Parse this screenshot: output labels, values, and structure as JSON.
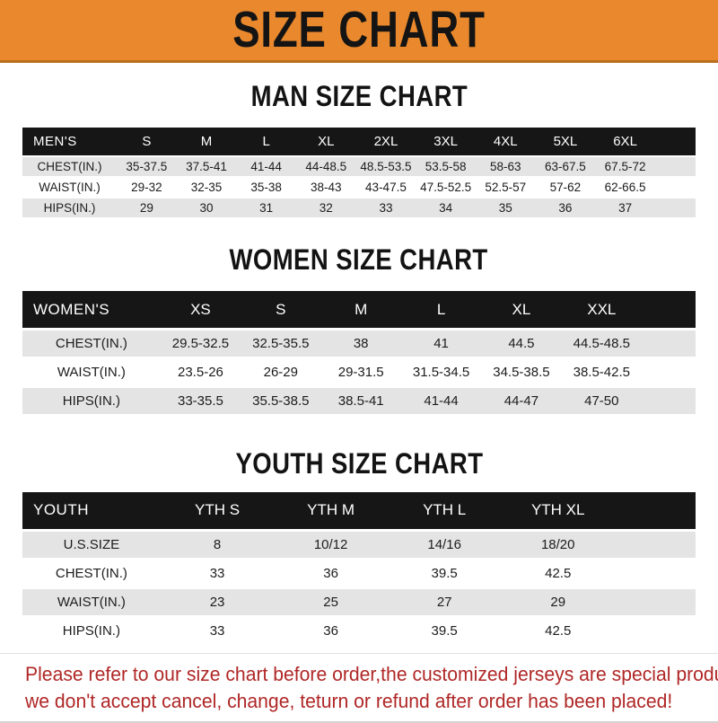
{
  "banner": {
    "title": "SIZE CHART"
  },
  "colors": {
    "banner_bg": "#e9882c",
    "banner_text": "#141414",
    "header_bar_bg": "#161616",
    "header_bar_text": "#ffffff",
    "row_alt_bg": "#e4e4e4",
    "footer_text": "#b02727"
  },
  "footer": {
    "line1": "Please refer to our size chart before order,the customized jerseys are special products,",
    "line2": "we don't accept cancel, change, teturn or refund after order has been placed!"
  },
  "chart_data": [
    {
      "type": "table",
      "title": "MAN SIZE CHART",
      "corner_label": "MEN'S",
      "columns": [
        "S",
        "M",
        "L",
        "XL",
        "2XL",
        "3XL",
        "4XL",
        "5XL",
        "6XL"
      ],
      "rows": [
        {
          "label": "CHEST(IN.)",
          "values": [
            "35-37.5",
            "37.5-41",
            "41-44",
            "44-48.5",
            "48.5-53.5",
            "53.5-58",
            "58-63",
            "63-67.5",
            "67.5-72"
          ]
        },
        {
          "label": "WAIST(IN.)",
          "values": [
            "29-32",
            "32-35",
            "35-38",
            "38-43",
            "43-47.5",
            "47.5-52.5",
            "52.5-57",
            "57-62",
            "62-66.5"
          ]
        },
        {
          "label": "HIPS(IN.)",
          "values": [
            "29",
            "30",
            "31",
            "32",
            "33",
            "34",
            "35",
            "36",
            "37"
          ]
        }
      ]
    },
    {
      "type": "table",
      "title": "WOMEN SIZE CHART",
      "corner_label": "WOMEN'S",
      "columns": [
        "XS",
        "S",
        "M",
        "L",
        "XL",
        "XXL"
      ],
      "rows": [
        {
          "label": "CHEST(IN.)",
          "values": [
            "29.5-32.5",
            "32.5-35.5",
            "38",
            "41",
            "44.5",
            "44.5-48.5"
          ]
        },
        {
          "label": "WAIST(IN.)",
          "values": [
            "23.5-26",
            "26-29",
            "29-31.5",
            "31.5-34.5",
            "34.5-38.5",
            "38.5-42.5"
          ]
        },
        {
          "label": "HIPS(IN.)",
          "values": [
            "33-35.5",
            "35.5-38.5",
            "38.5-41",
            "41-44",
            "44-47",
            "47-50"
          ]
        }
      ]
    },
    {
      "type": "table",
      "title": "YOUTH SIZE CHART",
      "corner_label": "YOUTH",
      "columns": [
        "YTH S",
        "YTH M",
        "YTH L",
        "YTH XL"
      ],
      "rows": [
        {
          "label": "U.S.SIZE",
          "values": [
            "8",
            "10/12",
            "14/16",
            "18/20"
          ]
        },
        {
          "label": "CHEST(IN.)",
          "values": [
            "33",
            "36",
            "39.5",
            "42.5"
          ]
        },
        {
          "label": "WAIST(IN.)",
          "values": [
            "23",
            "25",
            "27",
            "29"
          ]
        },
        {
          "label": "HIPS(IN.)",
          "values": [
            "33",
            "36",
            "39.5",
            "42.5"
          ]
        }
      ]
    }
  ]
}
